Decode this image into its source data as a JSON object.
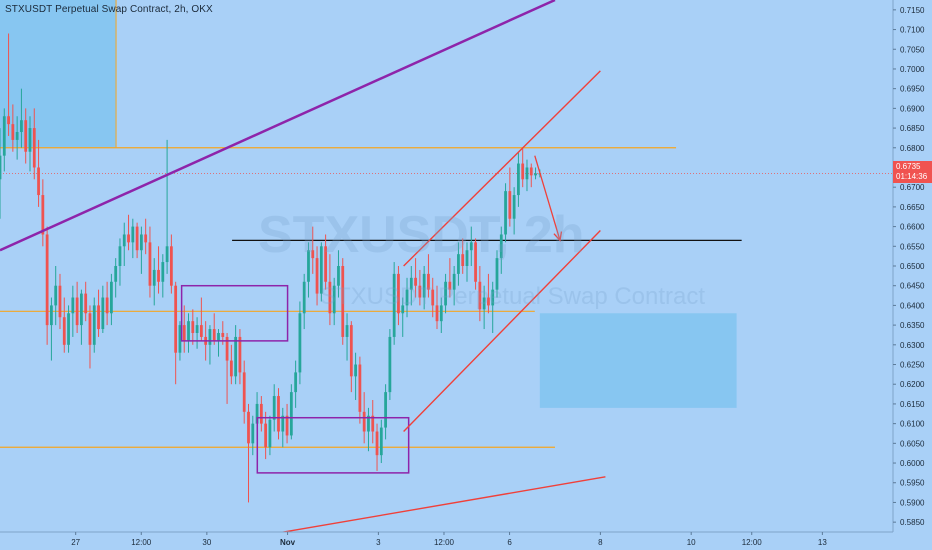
{
  "header": {
    "title": "STXUSDT Perpetual Swap Contract, 2h, OKX"
  },
  "watermark": {
    "symbol": "STXUSDT, 2h",
    "description": "STXUSDT Perpetual Swap Contract"
  },
  "price_tag": {
    "price": "0.6735",
    "countdown": "01:14:36"
  },
  "colors": {
    "background": "#a9d0f7",
    "bullish": "#26a69a",
    "bearish": "#ef5350",
    "orange_level": "#f5a623",
    "purple": "#8e24aa",
    "red_trend": "#f0403a",
    "zone_fill": "#7cc3ef"
  },
  "chart_data": {
    "type": "candlestick",
    "title": "STXUSDT Perpetual Swap Contract, 2h, OKX",
    "ylim": [
      0.5825,
      0.7175
    ],
    "y_ticks": [
      "0.7150",
      "0.7100",
      "0.7050",
      "0.7000",
      "0.6950",
      "0.6900",
      "0.6850",
      "0.6800",
      "0.6750",
      "0.6700",
      "0.6650",
      "0.6600",
      "0.6550",
      "0.6500",
      "0.6450",
      "0.6400",
      "0.6350",
      "0.6300",
      "0.6250",
      "0.6200",
      "0.6150",
      "0.6100",
      "0.6050",
      "0.6000",
      "0.5950",
      "0.5900",
      "0.5850"
    ],
    "x_ticks": [
      {
        "label": "27",
        "x": 16
      },
      {
        "label": "12:00",
        "x": 29
      },
      {
        "label": "30",
        "x": 42
      },
      {
        "label": "Nov",
        "x": 58
      },
      {
        "label": "3",
        "x": 76
      },
      {
        "label": "12:00",
        "x": 89
      },
      {
        "label": "6",
        "x": 102
      },
      {
        "label": "8",
        "x": 120
      },
      {
        "label": "10",
        "x": 138
      },
      {
        "label": "12:00",
        "x": 150
      },
      {
        "label": "13",
        "x": 164
      }
    ],
    "x_range": [
      1,
      178
    ],
    "candles_count": 130,
    "horizontal_levels": [
      {
        "name": "resistance",
        "y": 0.68,
        "x_start": 1,
        "x_end": 135
      },
      {
        "name": "mid",
        "y": 0.6385,
        "x_start": 1,
        "x_end": 107
      },
      {
        "name": "support",
        "y": 0.604,
        "x_start": 1,
        "x_end": 111
      },
      {
        "name": "target",
        "y": 0.6565,
        "x_start": 47,
        "x_end": 148
      }
    ],
    "price_line": 0.6735,
    "trendlines": [
      {
        "name": "purple-upper",
        "points": [
          [
            1,
            0.654
          ],
          [
            111,
            0.7175
          ]
        ]
      },
      {
        "name": "channel-top",
        "points": [
          [
            81,
            0.65
          ],
          [
            120,
            0.6995
          ]
        ]
      },
      {
        "name": "channel-bottom",
        "points": [
          [
            81,
            0.608
          ],
          [
            120,
            0.659
          ]
        ]
      },
      {
        "name": "lower-trend",
        "points": [
          [
            55,
            0.582
          ],
          [
            121,
            0.5965
          ]
        ]
      }
    ],
    "forecast_arrow": [
      [
        107,
        0.678
      ],
      [
        112,
        0.6565
      ]
    ],
    "zones": [
      {
        "name": "top-left",
        "x": [
          1,
          24
        ],
        "y": [
          0.68,
          0.7175
        ]
      },
      {
        "name": "mid-right",
        "x": [
          108,
          147
        ],
        "y": [
          0.614,
          0.638
        ]
      }
    ],
    "boxes": [
      {
        "name": "consolidation-box",
        "x": [
          37,
          58
        ],
        "y": [
          0.631,
          0.645
        ]
      },
      {
        "name": "bottom-box",
        "x": [
          52,
          82
        ],
        "y": [
          0.5975,
          0.6115
        ]
      }
    ],
    "candles": [
      {
        "o": 0.672,
        "h": 0.685,
        "l": 0.662,
        "c": 0.678
      },
      {
        "o": 0.678,
        "h": 0.69,
        "l": 0.674,
        "c": 0.688
      },
      {
        "o": 0.688,
        "h": 0.709,
        "l": 0.683,
        "c": 0.686
      },
      {
        "o": 0.686,
        "h": 0.691,
        "l": 0.679,
        "c": 0.682
      },
      {
        "o": 0.682,
        "h": 0.688,
        "l": 0.677,
        "c": 0.684
      },
      {
        "o": 0.684,
        "h": 0.695,
        "l": 0.68,
        "c": 0.687
      },
      {
        "o": 0.687,
        "h": 0.69,
        "l": 0.676,
        "c": 0.679
      },
      {
        "o": 0.679,
        "h": 0.688,
        "l": 0.674,
        "c": 0.685
      },
      {
        "o": 0.685,
        "h": 0.69,
        "l": 0.672,
        "c": 0.675
      },
      {
        "o": 0.675,
        "h": 0.682,
        "l": 0.665,
        "c": 0.668
      },
      {
        "o": 0.668,
        "h": 0.672,
        "l": 0.655,
        "c": 0.658
      },
      {
        "o": 0.658,
        "h": 0.66,
        "l": 0.63,
        "c": 0.635
      },
      {
        "o": 0.635,
        "h": 0.642,
        "l": 0.626,
        "c": 0.64
      },
      {
        "o": 0.64,
        "h": 0.65,
        "l": 0.635,
        "c": 0.645
      },
      {
        "o": 0.645,
        "h": 0.648,
        "l": 0.634,
        "c": 0.637
      },
      {
        "o": 0.637,
        "h": 0.642,
        "l": 0.628,
        "c": 0.63
      },
      {
        "o": 0.63,
        "h": 0.64,
        "l": 0.628,
        "c": 0.638
      },
      {
        "o": 0.638,
        "h": 0.645,
        "l": 0.632,
        "c": 0.642
      },
      {
        "o": 0.642,
        "h": 0.646,
        "l": 0.633,
        "c": 0.635
      },
      {
        "o": 0.635,
        "h": 0.644,
        "l": 0.63,
        "c": 0.643
      },
      {
        "o": 0.643,
        "h": 0.646,
        "l": 0.636,
        "c": 0.638
      },
      {
        "o": 0.638,
        "h": 0.64,
        "l": 0.624,
        "c": 0.63
      },
      {
        "o": 0.63,
        "h": 0.642,
        "l": 0.628,
        "c": 0.64
      },
      {
        "o": 0.64,
        "h": 0.644,
        "l": 0.632,
        "c": 0.634
      },
      {
        "o": 0.634,
        "h": 0.645,
        "l": 0.633,
        "c": 0.642
      },
      {
        "o": 0.642,
        "h": 0.646,
        "l": 0.635,
        "c": 0.638
      },
      {
        "o": 0.638,
        "h": 0.648,
        "l": 0.635,
        "c": 0.646
      },
      {
        "o": 0.646,
        "h": 0.652,
        "l": 0.642,
        "c": 0.65
      },
      {
        "o": 0.65,
        "h": 0.657,
        "l": 0.645,
        "c": 0.655
      },
      {
        "o": 0.655,
        "h": 0.661,
        "l": 0.65,
        "c": 0.658
      },
      {
        "o": 0.658,
        "h": 0.663,
        "l": 0.654,
        "c": 0.656
      },
      {
        "o": 0.656,
        "h": 0.662,
        "l": 0.652,
        "c": 0.66
      },
      {
        "o": 0.66,
        "h": 0.661,
        "l": 0.652,
        "c": 0.654
      },
      {
        "o": 0.654,
        "h": 0.66,
        "l": 0.648,
        "c": 0.658
      },
      {
        "o": 0.658,
        "h": 0.662,
        "l": 0.653,
        "c": 0.656
      },
      {
        "o": 0.656,
        "h": 0.66,
        "l": 0.642,
        "c": 0.645
      },
      {
        "o": 0.645,
        "h": 0.652,
        "l": 0.64,
        "c": 0.649
      },
      {
        "o": 0.649,
        "h": 0.655,
        "l": 0.643,
        "c": 0.646
      },
      {
        "o": 0.646,
        "h": 0.653,
        "l": 0.642,
        "c": 0.651
      },
      {
        "o": 0.651,
        "h": 0.682,
        "l": 0.648,
        "c": 0.655
      },
      {
        "o": 0.655,
        "h": 0.658,
        "l": 0.643,
        "c": 0.645
      },
      {
        "o": 0.645,
        "h": 0.646,
        "l": 0.62,
        "c": 0.628
      },
      {
        "o": 0.628,
        "h": 0.636,
        "l": 0.626,
        "c": 0.635
      },
      {
        "o": 0.635,
        "h": 0.64,
        "l": 0.628,
        "c": 0.631
      },
      {
        "o": 0.631,
        "h": 0.638,
        "l": 0.628,
        "c": 0.636
      },
      {
        "o": 0.636,
        "h": 0.639,
        "l": 0.63,
        "c": 0.633
      },
      {
        "o": 0.633,
        "h": 0.637,
        "l": 0.629,
        "c": 0.635
      },
      {
        "o": 0.635,
        "h": 0.642,
        "l": 0.631,
        "c": 0.632
      },
      {
        "o": 0.632,
        "h": 0.636,
        "l": 0.626,
        "c": 0.63
      },
      {
        "o": 0.63,
        "h": 0.635,
        "l": 0.625,
        "c": 0.634
      },
      {
        "o": 0.634,
        "h": 0.638,
        "l": 0.63,
        "c": 0.631
      },
      {
        "o": 0.631,
        "h": 0.634,
        "l": 0.627,
        "c": 0.633
      },
      {
        "o": 0.633,
        "h": 0.636,
        "l": 0.63,
        "c": 0.632
      },
      {
        "o": 0.632,
        "h": 0.633,
        "l": 0.615,
        "c": 0.626
      },
      {
        "o": 0.626,
        "h": 0.63,
        "l": 0.62,
        "c": 0.622
      },
      {
        "o": 0.622,
        "h": 0.635,
        "l": 0.62,
        "c": 0.632
      },
      {
        "o": 0.632,
        "h": 0.634,
        "l": 0.62,
        "c": 0.623
      },
      {
        "o": 0.623,
        "h": 0.626,
        "l": 0.61,
        "c": 0.613
      },
      {
        "o": 0.613,
        "h": 0.615,
        "l": 0.59,
        "c": 0.605
      },
      {
        "o": 0.605,
        "h": 0.612,
        "l": 0.602,
        "c": 0.61
      },
      {
        "o": 0.61,
        "h": 0.618,
        "l": 0.606,
        "c": 0.615
      },
      {
        "o": 0.615,
        "h": 0.617,
        "l": 0.608,
        "c": 0.61
      },
      {
        "o": 0.61,
        "h": 0.613,
        "l": 0.601,
        "c": 0.604
      },
      {
        "o": 0.604,
        "h": 0.612,
        "l": 0.602,
        "c": 0.611
      },
      {
        "o": 0.611,
        "h": 0.62,
        "l": 0.608,
        "c": 0.617
      },
      {
        "o": 0.617,
        "h": 0.619,
        "l": 0.606,
        "c": 0.608
      },
      {
        "o": 0.608,
        "h": 0.614,
        "l": 0.604,
        "c": 0.612
      },
      {
        "o": 0.612,
        "h": 0.615,
        "l": 0.605,
        "c": 0.607
      },
      {
        "o": 0.607,
        "h": 0.62,
        "l": 0.606,
        "c": 0.618
      },
      {
        "o": 0.618,
        "h": 0.626,
        "l": 0.614,
        "c": 0.623
      },
      {
        "o": 0.623,
        "h": 0.641,
        "l": 0.62,
        "c": 0.638
      },
      {
        "o": 0.638,
        "h": 0.648,
        "l": 0.634,
        "c": 0.646
      },
      {
        "o": 0.646,
        "h": 0.656,
        "l": 0.642,
        "c": 0.654
      },
      {
        "o": 0.654,
        "h": 0.66,
        "l": 0.648,
        "c": 0.652
      },
      {
        "o": 0.652,
        "h": 0.655,
        "l": 0.64,
        "c": 0.643
      },
      {
        "o": 0.643,
        "h": 0.656,
        "l": 0.641,
        "c": 0.655
      },
      {
        "o": 0.655,
        "h": 0.658,
        "l": 0.644,
        "c": 0.646
      },
      {
        "o": 0.646,
        "h": 0.653,
        "l": 0.635,
        "c": 0.638
      },
      {
        "o": 0.638,
        "h": 0.647,
        "l": 0.635,
        "c": 0.645
      },
      {
        "o": 0.645,
        "h": 0.654,
        "l": 0.642,
        "c": 0.65
      },
      {
        "o": 0.65,
        "h": 0.652,
        "l": 0.63,
        "c": 0.632
      },
      {
        "o": 0.632,
        "h": 0.638,
        "l": 0.626,
        "c": 0.635
      },
      {
        "o": 0.635,
        "h": 0.636,
        "l": 0.618,
        "c": 0.622
      },
      {
        "o": 0.622,
        "h": 0.628,
        "l": 0.616,
        "c": 0.625
      },
      {
        "o": 0.625,
        "h": 0.627,
        "l": 0.61,
        "c": 0.613
      },
      {
        "o": 0.613,
        "h": 0.618,
        "l": 0.605,
        "c": 0.608
      },
      {
        "o": 0.608,
        "h": 0.614,
        "l": 0.603,
        "c": 0.612
      },
      {
        "o": 0.612,
        "h": 0.616,
        "l": 0.605,
        "c": 0.608
      },
      {
        "o": 0.608,
        "h": 0.61,
        "l": 0.598,
        "c": 0.602
      },
      {
        "o": 0.602,
        "h": 0.611,
        "l": 0.6,
        "c": 0.609
      },
      {
        "o": 0.609,
        "h": 0.62,
        "l": 0.606,
        "c": 0.618
      },
      {
        "o": 0.618,
        "h": 0.634,
        "l": 0.616,
        "c": 0.632
      },
      {
        "o": 0.632,
        "h": 0.651,
        "l": 0.63,
        "c": 0.648
      },
      {
        "o": 0.648,
        "h": 0.65,
        "l": 0.635,
        "c": 0.638
      },
      {
        "o": 0.638,
        "h": 0.642,
        "l": 0.632,
        "c": 0.64
      },
      {
        "o": 0.64,
        "h": 0.647,
        "l": 0.637,
        "c": 0.644
      },
      {
        "o": 0.644,
        "h": 0.65,
        "l": 0.64,
        "c": 0.647
      },
      {
        "o": 0.647,
        "h": 0.652,
        "l": 0.642,
        "c": 0.645
      },
      {
        "o": 0.645,
        "h": 0.649,
        "l": 0.64,
        "c": 0.642
      },
      {
        "o": 0.642,
        "h": 0.65,
        "l": 0.639,
        "c": 0.648
      },
      {
        "o": 0.648,
        "h": 0.653,
        "l": 0.642,
        "c": 0.644
      },
      {
        "o": 0.644,
        "h": 0.647,
        "l": 0.637,
        "c": 0.64
      },
      {
        "o": 0.64,
        "h": 0.645,
        "l": 0.634,
        "c": 0.636
      },
      {
        "o": 0.636,
        "h": 0.642,
        "l": 0.633,
        "c": 0.64
      },
      {
        "o": 0.64,
        "h": 0.648,
        "l": 0.638,
        "c": 0.646
      },
      {
        "o": 0.646,
        "h": 0.652,
        "l": 0.642,
        "c": 0.644
      },
      {
        "o": 0.644,
        "h": 0.65,
        "l": 0.64,
        "c": 0.648
      },
      {
        "o": 0.648,
        "h": 0.656,
        "l": 0.645,
        "c": 0.653
      },
      {
        "o": 0.653,
        "h": 0.657,
        "l": 0.648,
        "c": 0.65
      },
      {
        "o": 0.65,
        "h": 0.656,
        "l": 0.646,
        "c": 0.654
      },
      {
        "o": 0.654,
        "h": 0.66,
        "l": 0.65,
        "c": 0.656
      },
      {
        "o": 0.656,
        "h": 0.657,
        "l": 0.644,
        "c": 0.646
      },
      {
        "o": 0.646,
        "h": 0.65,
        "l": 0.636,
        "c": 0.639
      },
      {
        "o": 0.639,
        "h": 0.645,
        "l": 0.634,
        "c": 0.642
      },
      {
        "o": 0.642,
        "h": 0.648,
        "l": 0.638,
        "c": 0.64
      },
      {
        "o": 0.64,
        "h": 0.646,
        "l": 0.633,
        "c": 0.644
      },
      {
        "o": 0.644,
        "h": 0.654,
        "l": 0.642,
        "c": 0.652
      },
      {
        "o": 0.652,
        "h": 0.66,
        "l": 0.648,
        "c": 0.658
      },
      {
        "o": 0.658,
        "h": 0.671,
        "l": 0.656,
        "c": 0.669
      },
      {
        "o": 0.669,
        "h": 0.675,
        "l": 0.66,
        "c": 0.662
      },
      {
        "o": 0.662,
        "h": 0.67,
        "l": 0.658,
        "c": 0.668
      },
      {
        "o": 0.668,
        "h": 0.679,
        "l": 0.665,
        "c": 0.676
      },
      {
        "o": 0.676,
        "h": 0.68,
        "l": 0.67,
        "c": 0.672
      },
      {
        "o": 0.672,
        "h": 0.677,
        "l": 0.669,
        "c": 0.675
      },
      {
        "o": 0.675,
        "h": 0.676,
        "l": 0.67,
        "c": 0.673
      },
      {
        "o": 0.673,
        "h": 0.675,
        "l": 0.672,
        "c": 0.6735
      },
      {
        "o": 0.6735,
        "h": 0.6745,
        "l": 0.6725,
        "c": 0.6735
      }
    ]
  }
}
